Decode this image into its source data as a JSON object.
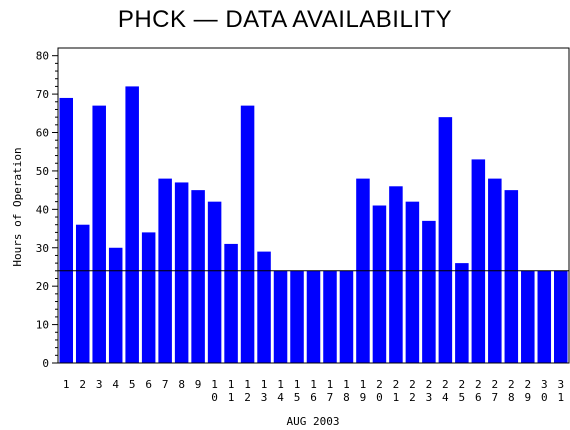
{
  "chart_data": {
    "type": "bar",
    "title": "PHCK — DATA AVAILABILITY",
    "xlabel": "AUG 2003",
    "ylabel": "Hours of Operation",
    "ylim": [
      0,
      82
    ],
    "yticks": [
      0,
      10,
      20,
      30,
      40,
      50,
      60,
      70,
      80
    ],
    "categories": [
      "1",
      "2",
      "3",
      "4",
      "5",
      "6",
      "7",
      "8",
      "9",
      "10",
      "11",
      "12",
      "13",
      "14",
      "15",
      "16",
      "17",
      "18",
      "19",
      "20",
      "21",
      "22",
      "23",
      "24",
      "25",
      "26",
      "27",
      "28",
      "29",
      "30",
      "31"
    ],
    "values": [
      69,
      36,
      67,
      30,
      72,
      34,
      48,
      47,
      45,
      42,
      31,
      67,
      29,
      24,
      24,
      24,
      24,
      24,
      48,
      41,
      46,
      42,
      37,
      64,
      26,
      53,
      48,
      45,
      24,
      24,
      24
    ],
    "reference_line": 24,
    "bar_color": "#0000ff",
    "grid": false,
    "legend": "none"
  }
}
